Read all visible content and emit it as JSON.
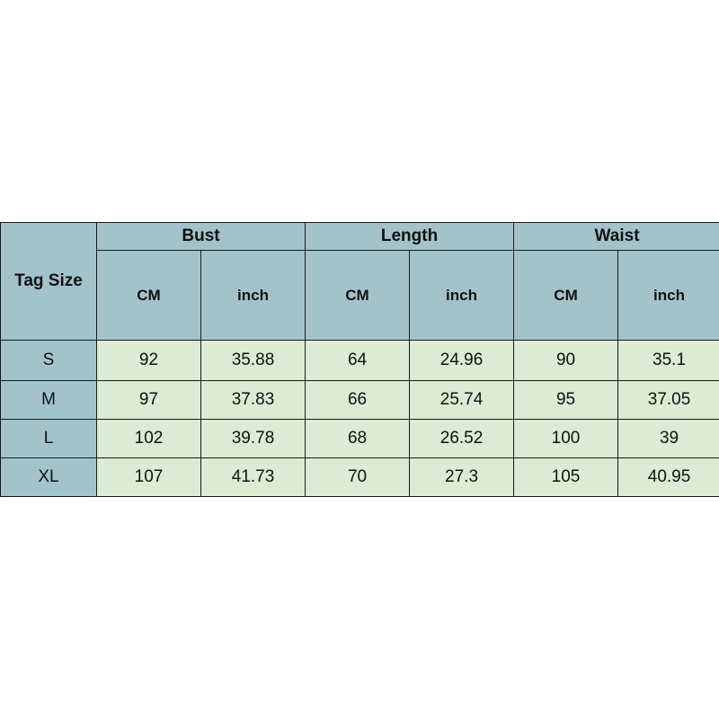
{
  "table": {
    "corner": "Tag Size",
    "groups": [
      "Bust",
      "Length",
      "Waist"
    ],
    "units": [
      "CM",
      "inch",
      "CM",
      "inch",
      "CM",
      "inch"
    ],
    "rows": [
      {
        "size": "S",
        "values": [
          "92",
          "35.88",
          "64",
          "24.96",
          "90",
          "35.1"
        ]
      },
      {
        "size": "M",
        "values": [
          "97",
          "37.83",
          "66",
          "25.74",
          "95",
          "37.05"
        ]
      },
      {
        "size": "L",
        "values": [
          "102",
          "39.78",
          "68",
          "26.52",
          "100",
          "39"
        ]
      },
      {
        "size": "XL",
        "values": [
          "107",
          "41.73",
          "70",
          "27.3",
          "105",
          "40.95"
        ]
      }
    ]
  },
  "colors": {
    "header": "#a3c3cb",
    "body": "#dcebd3"
  }
}
